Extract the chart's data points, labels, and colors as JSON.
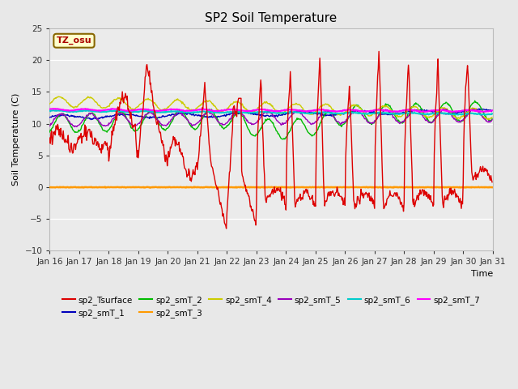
{
  "title": "SP2 Soil Temperature",
  "ylabel": "Soil Temperature (C)",
  "xlabel": "Time",
  "ylim": [
    -10,
    25
  ],
  "x_tick_labels": [
    "Jan 16",
    "Jan 17",
    "Jan 18",
    "Jan 19",
    "Jan 20",
    "Jan 21",
    "Jan 22",
    "Jan 23",
    "Jan 24",
    "Jan 25",
    "Jan 26",
    "Jan 27",
    "Jan 28",
    "Jan 29",
    "Jan 30",
    "Jan 31"
  ],
  "tz_label": "TZ_osu",
  "bg_color": "#e8e8e8",
  "plot_bg_color": "#ebebeb",
  "line_colors": {
    "sp2_Tsurface": "#dd0000",
    "sp2_smT_1": "#0000bb",
    "sp2_smT_2": "#00bb00",
    "sp2_smT_3": "#ff9900",
    "sp2_smT_4": "#cccc00",
    "sp2_smT_5": "#9900bb",
    "sp2_smT_6": "#00cccc",
    "sp2_smT_7": "#ff00ff"
  }
}
